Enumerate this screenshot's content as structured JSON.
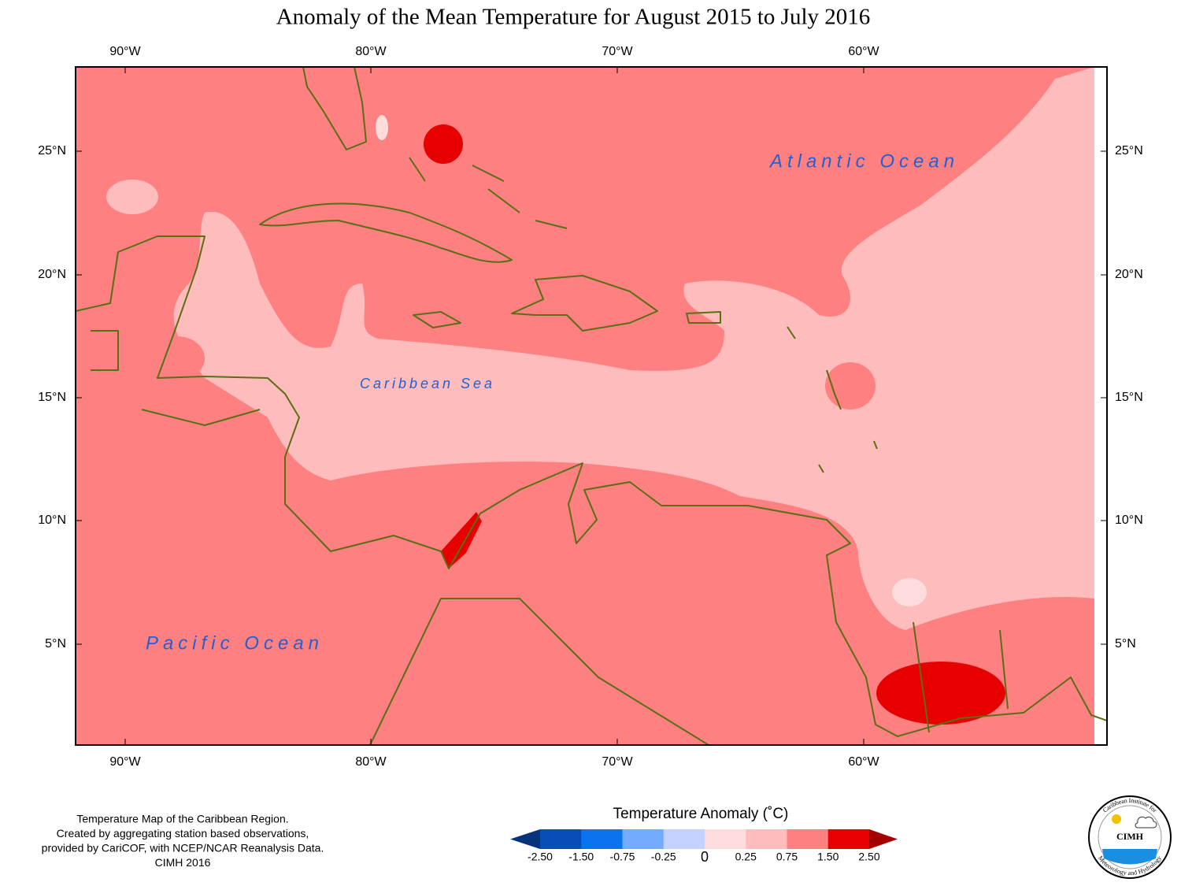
{
  "title": "Anomaly of the Mean Temperature for August 2015 to July 2016",
  "map": {
    "longitude_labels": [
      "90°W",
      "80°W",
      "70°W",
      "60°W"
    ],
    "latitude_labels": [
      "25°N",
      "20°N",
      "15°N",
      "10°N",
      "5°N"
    ],
    "ocean_labels": {
      "atlantic": "Atlantic Ocean",
      "caribbean": "Caribbean Sea",
      "pacific": "Pacific Ocean"
    }
  },
  "notes": [
    "Temperature Map of the Caribbean Region.",
    "Created by aggregating station based observations,",
    "provided by CariCOF, with NCEP/NCAR Reanalysis Data.",
    "CIMH 2016"
  ],
  "legend": {
    "title": "Temperature Anomaly (˚C)",
    "ticks": [
      "-2.50",
      "-1.50",
      "-0.75",
      "-0.25",
      "0",
      "0.25",
      "0.75",
      "1.50",
      "2.50"
    ],
    "colors": [
      "#06347a",
      "#0a4cb8",
      "#0b73f0",
      "#74abff",
      "#c4d2ff",
      "#ffdcdc",
      "#ffbcbc",
      "#ff8080",
      "#e60000",
      "#a50000"
    ]
  },
  "logo": {
    "name": "CIMH",
    "arc_top": "Caribbean Institute for",
    "arc_bottom": "Meteorology and Hydrology"
  }
}
